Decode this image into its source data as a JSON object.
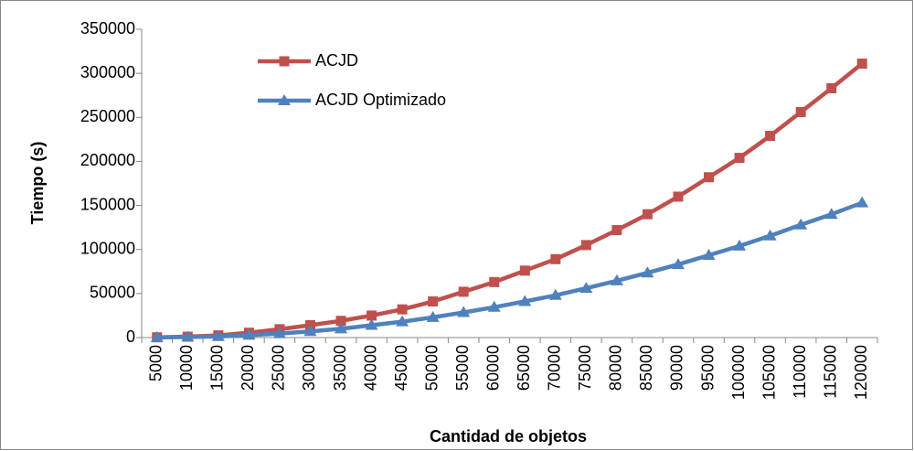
{
  "chart_data": {
    "type": "line",
    "y_label": "Tiempo (s)",
    "x_label": "Cantidad de objetos",
    "categories": [
      5000,
      10000,
      15000,
      20000,
      25000,
      30000,
      35000,
      40000,
      45000,
      50000,
      55000,
      60000,
      65000,
      70000,
      75000,
      80000,
      85000,
      90000,
      95000,
      100000,
      105000,
      110000,
      115000,
      120000
    ],
    "series": [
      {
        "name": "ACJD",
        "color": "#c0504d",
        "marker": "square",
        "values": [
          300,
          1000,
          2500,
          5500,
          9500,
          14000,
          19000,
          25000,
          32000,
          41000,
          52000,
          63000,
          76000,
          89000,
          105000,
          122000,
          140000,
          160000,
          182000,
          204000,
          229000,
          256000,
          283000,
          311000
        ]
      },
      {
        "name": "ACJD Optimizado",
        "color": "#4f81bd",
        "marker": "triangle",
        "values": [
          150,
          600,
          1300,
          2700,
          4500,
          7000,
          10000,
          14000,
          18000,
          23000,
          28500,
          34500,
          41000,
          48000,
          56000,
          64500,
          73500,
          83000,
          93500,
          104000,
          115500,
          128000,
          140000,
          153000
        ]
      }
    ],
    "ylim": [
      0,
      350000
    ],
    "yticks": [
      0,
      50000,
      100000,
      150000,
      200000,
      250000,
      300000,
      350000
    ],
    "grid": false,
    "legend": "upper left"
  }
}
